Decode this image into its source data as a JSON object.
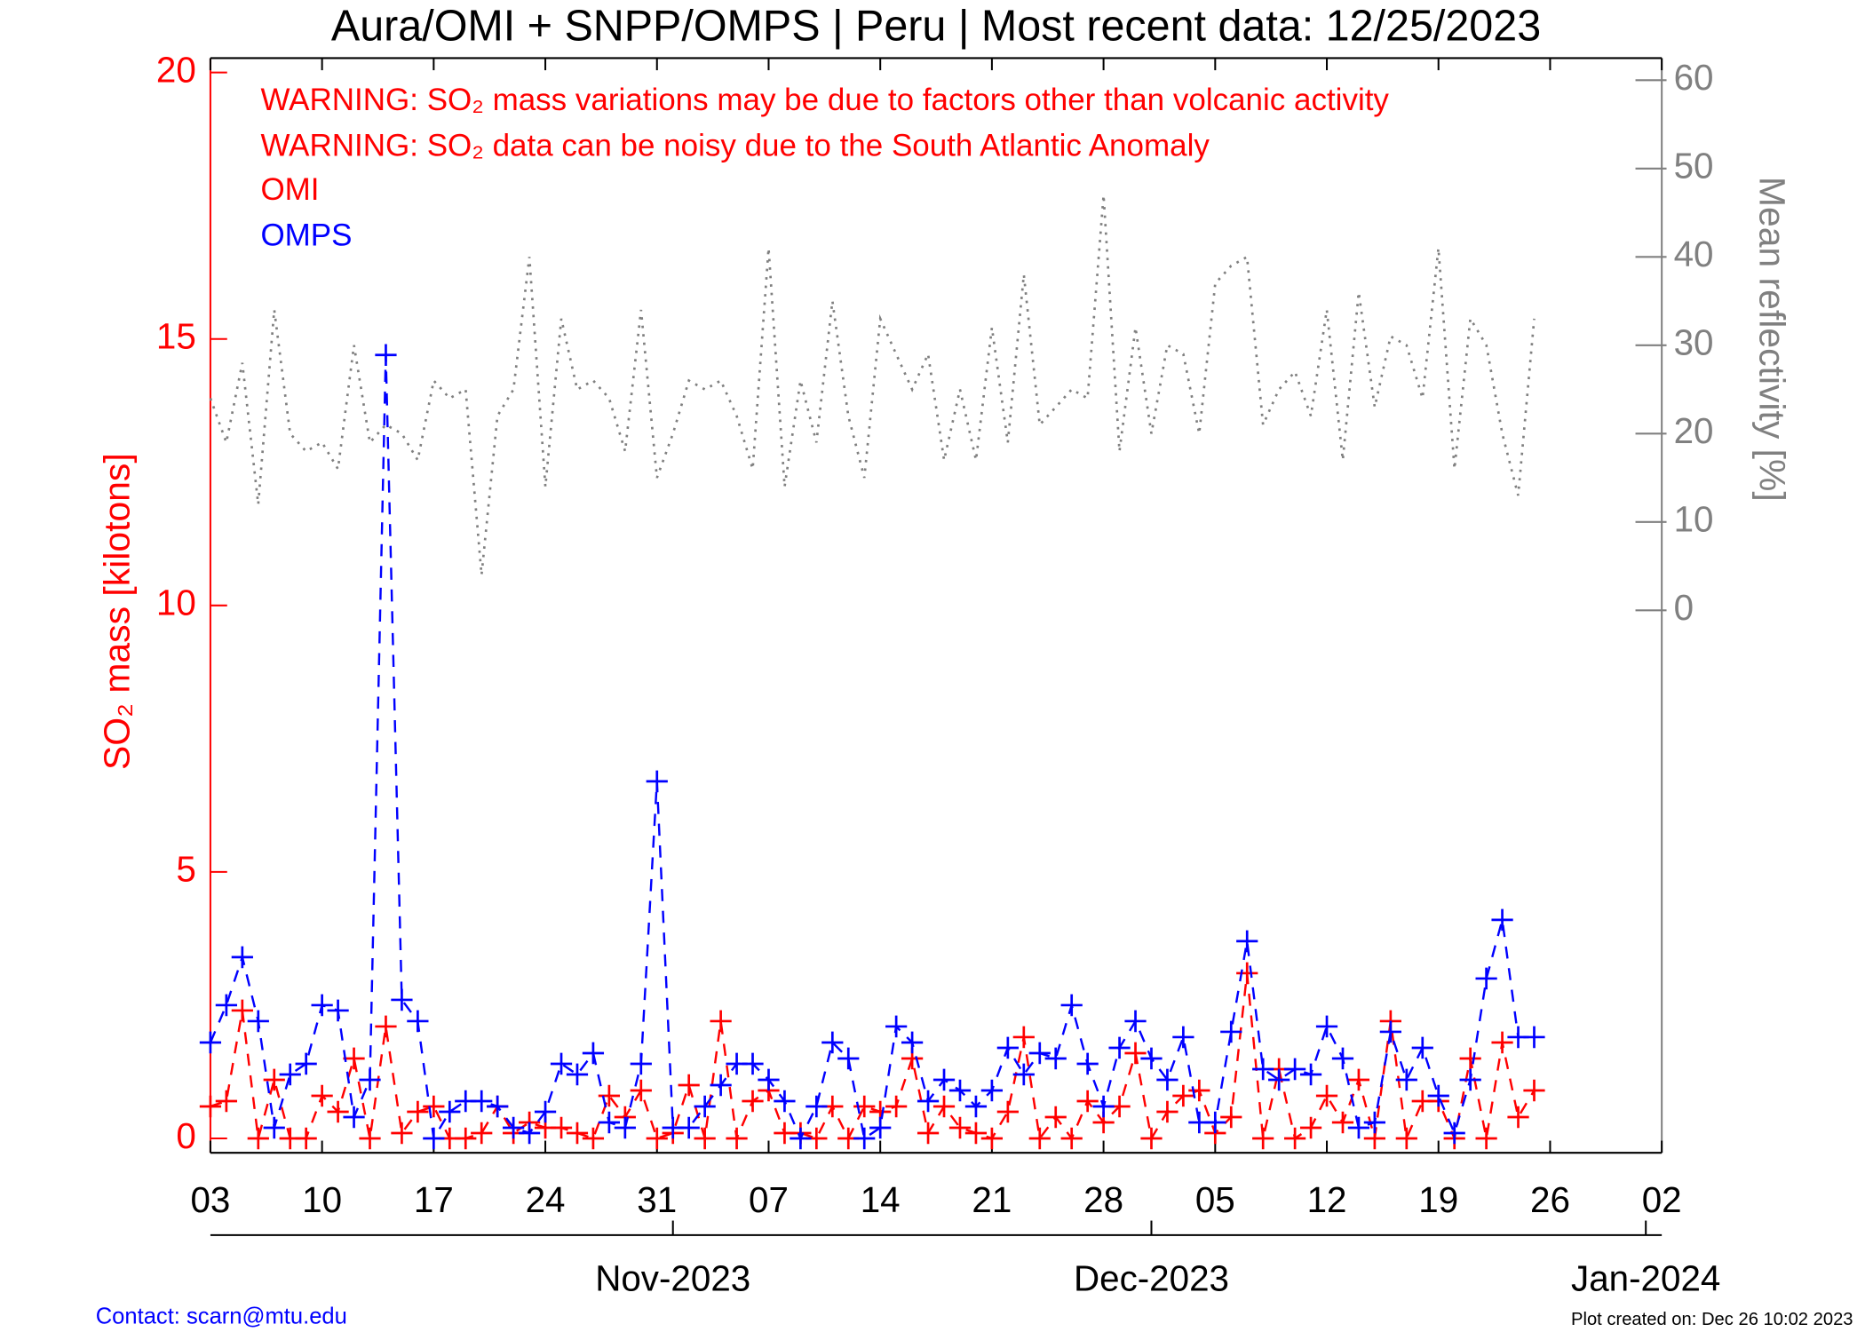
{
  "chart_data": {
    "type": "line",
    "title": "Aura/OMI + SNPP/OMPS | Peru | Most recent data: 12/25/2023",
    "y_label": "SO₂ mass [kilotons]",
    "y2_label": "Mean reflectivity [%]",
    "annotations": [
      "WARNING: SO₂ mass variations may be due to factors other than volcanic activity",
      "WARNING: SO₂ data can be noisy due to the South Atlantic Anomaly"
    ],
    "footer_left": "Contact: scarn@mtu.edu",
    "footer_right": "Plot created on: Dec 26 10:02 2023",
    "xlim": [
      "2023-10-03",
      "2024-01-02"
    ],
    "xticks": [
      {
        "value": "2023-10-03",
        "label": "03"
      },
      {
        "value": "2023-10-10",
        "label": "10"
      },
      {
        "value": "2023-10-17",
        "label": "17"
      },
      {
        "value": "2023-10-24",
        "label": "24"
      },
      {
        "value": "2023-10-31",
        "label": "31"
      },
      {
        "value": "2023-11-07",
        "label": "07"
      },
      {
        "value": "2023-11-14",
        "label": "14"
      },
      {
        "value": "2023-11-21",
        "label": "21"
      },
      {
        "value": "2023-11-28",
        "label": "28"
      },
      {
        "value": "2023-12-05",
        "label": "05"
      },
      {
        "value": "2023-12-12",
        "label": "12"
      },
      {
        "value": "2023-12-19",
        "label": "19"
      },
      {
        "value": "2023-12-26",
        "label": "26"
      },
      {
        "value": "2024-01-02",
        "label": "02"
      }
    ],
    "month_ticks": [
      {
        "value": "2023-11-01",
        "label": "Nov-2023"
      },
      {
        "value": "2023-12-01",
        "label": "Dec-2023"
      },
      {
        "value": "2024-01-01",
        "label": "Jan-2024"
      }
    ],
    "ylim": [
      -0.27,
      20.27
    ],
    "yticks": [
      0,
      5,
      10,
      15,
      20
    ],
    "y2lim": [
      -61.4,
      62.5
    ],
    "y2ticks": [
      0,
      10,
      20,
      30,
      40,
      50,
      60
    ],
    "x": [
      "2023-10-03",
      "2023-10-04",
      "2023-10-05",
      "2023-10-06",
      "2023-10-07",
      "2023-10-08",
      "2023-10-09",
      "2023-10-10",
      "2023-10-11",
      "2023-10-12",
      "2023-10-13",
      "2023-10-14",
      "2023-10-15",
      "2023-10-16",
      "2023-10-17",
      "2023-10-18",
      "2023-10-19",
      "2023-10-20",
      "2023-10-21",
      "2023-10-22",
      "2023-10-23",
      "2023-10-24",
      "2023-10-25",
      "2023-10-26",
      "2023-10-27",
      "2023-10-28",
      "2023-10-29",
      "2023-10-30",
      "2023-10-31",
      "2023-11-01",
      "2023-11-02",
      "2023-11-03",
      "2023-11-04",
      "2023-11-05",
      "2023-11-06",
      "2023-11-07",
      "2023-11-08",
      "2023-11-09",
      "2023-11-10",
      "2023-11-11",
      "2023-11-12",
      "2023-11-13",
      "2023-11-14",
      "2023-11-15",
      "2023-11-16",
      "2023-11-17",
      "2023-11-18",
      "2023-11-19",
      "2023-11-20",
      "2023-11-21",
      "2023-11-22",
      "2023-11-23",
      "2023-11-24",
      "2023-11-25",
      "2023-11-26",
      "2023-11-27",
      "2023-11-28",
      "2023-11-29",
      "2023-11-30",
      "2023-12-01",
      "2023-12-02",
      "2023-12-03",
      "2023-12-04",
      "2023-12-05",
      "2023-12-06",
      "2023-12-07",
      "2023-12-08",
      "2023-12-09",
      "2023-12-10",
      "2023-12-11",
      "2023-12-12",
      "2023-12-13",
      "2023-12-14",
      "2023-12-15",
      "2023-12-16",
      "2023-12-17",
      "2023-12-18",
      "2023-12-19",
      "2023-12-20",
      "2023-12-21",
      "2023-12-22",
      "2023-12-23",
      "2023-12-24",
      "2023-12-25"
    ],
    "series": [
      {
        "name": "OMI",
        "color": "#ff0000",
        "style": "dashed-plus",
        "values": [
          0.6,
          0.7,
          2.4,
          0.0,
          1.1,
          0.0,
          0.0,
          0.8,
          0.5,
          1.5,
          0.0,
          2.1,
          0.1,
          0.5,
          0.6,
          0.0,
          0.0,
          0.1,
          0.6,
          0.1,
          0.3,
          0.2,
          0.2,
          0.1,
          0.0,
          0.8,
          0.4,
          0.9,
          0.0,
          0.1,
          1.0,
          0.0,
          2.2,
          0.0,
          0.7,
          0.9,
          0.1,
          0.1,
          0.0,
          0.6,
          0.0,
          0.6,
          0.5,
          0.6,
          1.5,
          0.1,
          0.6,
          0.2,
          0.1,
          0.0,
          0.5,
          1.9,
          0.0,
          0.4,
          0.0,
          0.7,
          0.3,
          0.6,
          1.6,
          0.0,
          0.5,
          0.8,
          0.9,
          0.1,
          0.4,
          3.1,
          0.0,
          1.3,
          0.0,
          0.2,
          0.8,
          0.3,
          1.1,
          0.0,
          2.2,
          0.0,
          0.7,
          0.7,
          0.0,
          1.5,
          0.0,
          1.8,
          0.4,
          0.9
        ]
      },
      {
        "name": "OMPS",
        "color": "#0000ff",
        "style": "dashed-plus",
        "values": [
          1.8,
          2.5,
          3.4,
          2.2,
          0.2,
          1.2,
          1.4,
          2.5,
          2.4,
          0.4,
          1.1,
          14.7,
          2.6,
          2.2,
          0.0,
          0.5,
          0.7,
          0.7,
          0.6,
          0.2,
          0.1,
          0.5,
          1.4,
          1.2,
          1.6,
          0.3,
          0.2,
          1.4,
          6.7,
          0.2,
          0.2,
          0.6,
          1.0,
          1.4,
          1.4,
          1.1,
          0.7,
          0.0,
          0.6,
          1.8,
          1.5,
          0.0,
          0.2,
          2.1,
          1.8,
          0.7,
          1.1,
          0.9,
          0.6,
          0.9,
          1.7,
          1.2,
          1.6,
          1.5,
          2.5,
          1.4,
          0.6,
          1.7,
          2.2,
          1.5,
          1.1,
          1.9,
          0.3,
          0.3,
          2.0,
          3.7,
          1.3,
          1.1,
          1.3,
          1.2,
          2.1,
          1.5,
          0.2,
          0.3,
          2.0,
          1.1,
          1.7,
          0.8,
          0.1,
          1.1,
          3.0,
          4.1,
          1.9,
          1.9
        ]
      },
      {
        "color": "#808080",
        "style": "dotted",
        "axis": "y2",
        "values": [
          24,
          19,
          28,
          12,
          34,
          20,
          18,
          19,
          16,
          30,
          19,
          21,
          20,
          17,
          26,
          24,
          25,
          4,
          22,
          25,
          40,
          14,
          33,
          25,
          26,
          24,
          18,
          34,
          15,
          20,
          26,
          25,
          26,
          22,
          16,
          41,
          14,
          26,
          19,
          35,
          22,
          15,
          33,
          29,
          25,
          29,
          17,
          25,
          17,
          32,
          19,
          38,
          21,
          23,
          25,
          24,
          47,
          18,
          32,
          20,
          30,
          29,
          20,
          37,
          39,
          40,
          21,
          25,
          27,
          22,
          34,
          17,
          36,
          23,
          31,
          30,
          24,
          41,
          16,
          33,
          30,
          20,
          13,
          33
        ]
      }
    ]
  }
}
